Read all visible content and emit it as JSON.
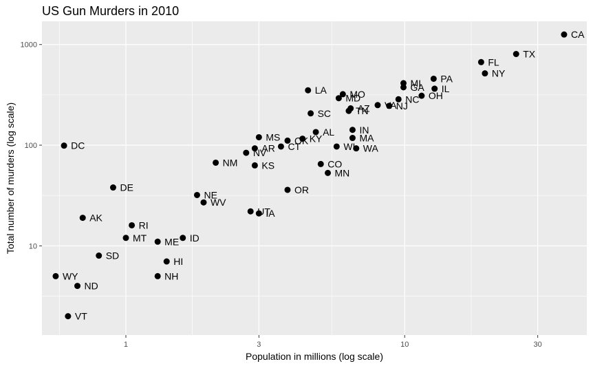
{
  "chart_data": {
    "type": "scatter",
    "title": "US Gun Murders in 2010",
    "xlabel": "Population in millions (log scale)",
    "ylabel": "Total number of murders (log scale)",
    "x_scale": "log10",
    "y_scale": "log10",
    "xlim": [
      0.5,
      45
    ],
    "ylim": [
      1.3,
      1700
    ],
    "x_ticks": [
      1,
      3,
      10,
      30
    ],
    "y_ticks": [
      10,
      100,
      1000
    ],
    "grid": true,
    "point_color": "#000000",
    "panel_color": "#ebebeb",
    "grid_color": "#ffffff",
    "points": [
      {
        "label": "CA",
        "x": 37.3,
        "y": 1257
      },
      {
        "label": "TX",
        "x": 25.1,
        "y": 805
      },
      {
        "label": "FL",
        "x": 18.8,
        "y": 669
      },
      {
        "label": "NY",
        "x": 19.4,
        "y": 517
      },
      {
        "label": "PA",
        "x": 12.7,
        "y": 457
      },
      {
        "label": "MI",
        "x": 9.9,
        "y": 413
      },
      {
        "label": "GA",
        "x": 9.9,
        "y": 376
      },
      {
        "label": "IL",
        "x": 12.8,
        "y": 364
      },
      {
        "label": "OH",
        "x": 11.5,
        "y": 310
      },
      {
        "label": "LA",
        "x": 4.5,
        "y": 351
      },
      {
        "label": "MO",
        "x": 6.0,
        "y": 321
      },
      {
        "label": "MD",
        "x": 5.8,
        "y": 293
      },
      {
        "label": "NC",
        "x": 9.5,
        "y": 286
      },
      {
        "label": "VA",
        "x": 8.0,
        "y": 250
      },
      {
        "label": "NJ",
        "x": 8.8,
        "y": 246
      },
      {
        "label": "AZ",
        "x": 6.4,
        "y": 232
      },
      {
        "label": "TN",
        "x": 6.3,
        "y": 219
      },
      {
        "label": "SC",
        "x": 4.6,
        "y": 207
      },
      {
        "label": "IN",
        "x": 6.5,
        "y": 142
      },
      {
        "label": "AL",
        "x": 4.8,
        "y": 135
      },
      {
        "label": "MA",
        "x": 6.5,
        "y": 118
      },
      {
        "label": "MS",
        "x": 3.0,
        "y": 120
      },
      {
        "label": "KY",
        "x": 4.3,
        "y": 116
      },
      {
        "label": "OK",
        "x": 3.8,
        "y": 111
      },
      {
        "label": "WI",
        "x": 5.7,
        "y": 97
      },
      {
        "label": "WA",
        "x": 6.7,
        "y": 93
      },
      {
        "label": "CT",
        "x": 3.6,
        "y": 97
      },
      {
        "label": "AR",
        "x": 2.9,
        "y": 93
      },
      {
        "label": "NV",
        "x": 2.7,
        "y": 84
      },
      {
        "label": "DC",
        "x": 0.6,
        "y": 99
      },
      {
        "label": "NM",
        "x": 2.1,
        "y": 67
      },
      {
        "label": "KS",
        "x": 2.9,
        "y": 63
      },
      {
        "label": "CO",
        "x": 5.0,
        "y": 65
      },
      {
        "label": "MN",
        "x": 5.3,
        "y": 53
      },
      {
        "label": "OR",
        "x": 3.8,
        "y": 36
      },
      {
        "label": "DE",
        "x": 0.9,
        "y": 38
      },
      {
        "label": "NE",
        "x": 1.8,
        "y": 32
      },
      {
        "label": "WV",
        "x": 1.9,
        "y": 27
      },
      {
        "label": "UT",
        "x": 2.8,
        "y": 22
      },
      {
        "label": "IA",
        "x": 3.0,
        "y": 21
      },
      {
        "label": "AK",
        "x": 0.7,
        "y": 19
      },
      {
        "label": "RI",
        "x": 1.05,
        "y": 16
      },
      {
        "label": "ID",
        "x": 1.6,
        "y": 12
      },
      {
        "label": "MT",
        "x": 1.0,
        "y": 12
      },
      {
        "label": "ME",
        "x": 1.3,
        "y": 11
      },
      {
        "label": "SD",
        "x": 0.8,
        "y": 8
      },
      {
        "label": "HI",
        "x": 1.4,
        "y": 7
      },
      {
        "label": "NH",
        "x": 1.3,
        "y": 5
      },
      {
        "label": "WY",
        "x": 0.56,
        "y": 5
      },
      {
        "label": "ND",
        "x": 0.67,
        "y": 4
      },
      {
        "label": "VT",
        "x": 0.62,
        "y": 2
      }
    ]
  }
}
